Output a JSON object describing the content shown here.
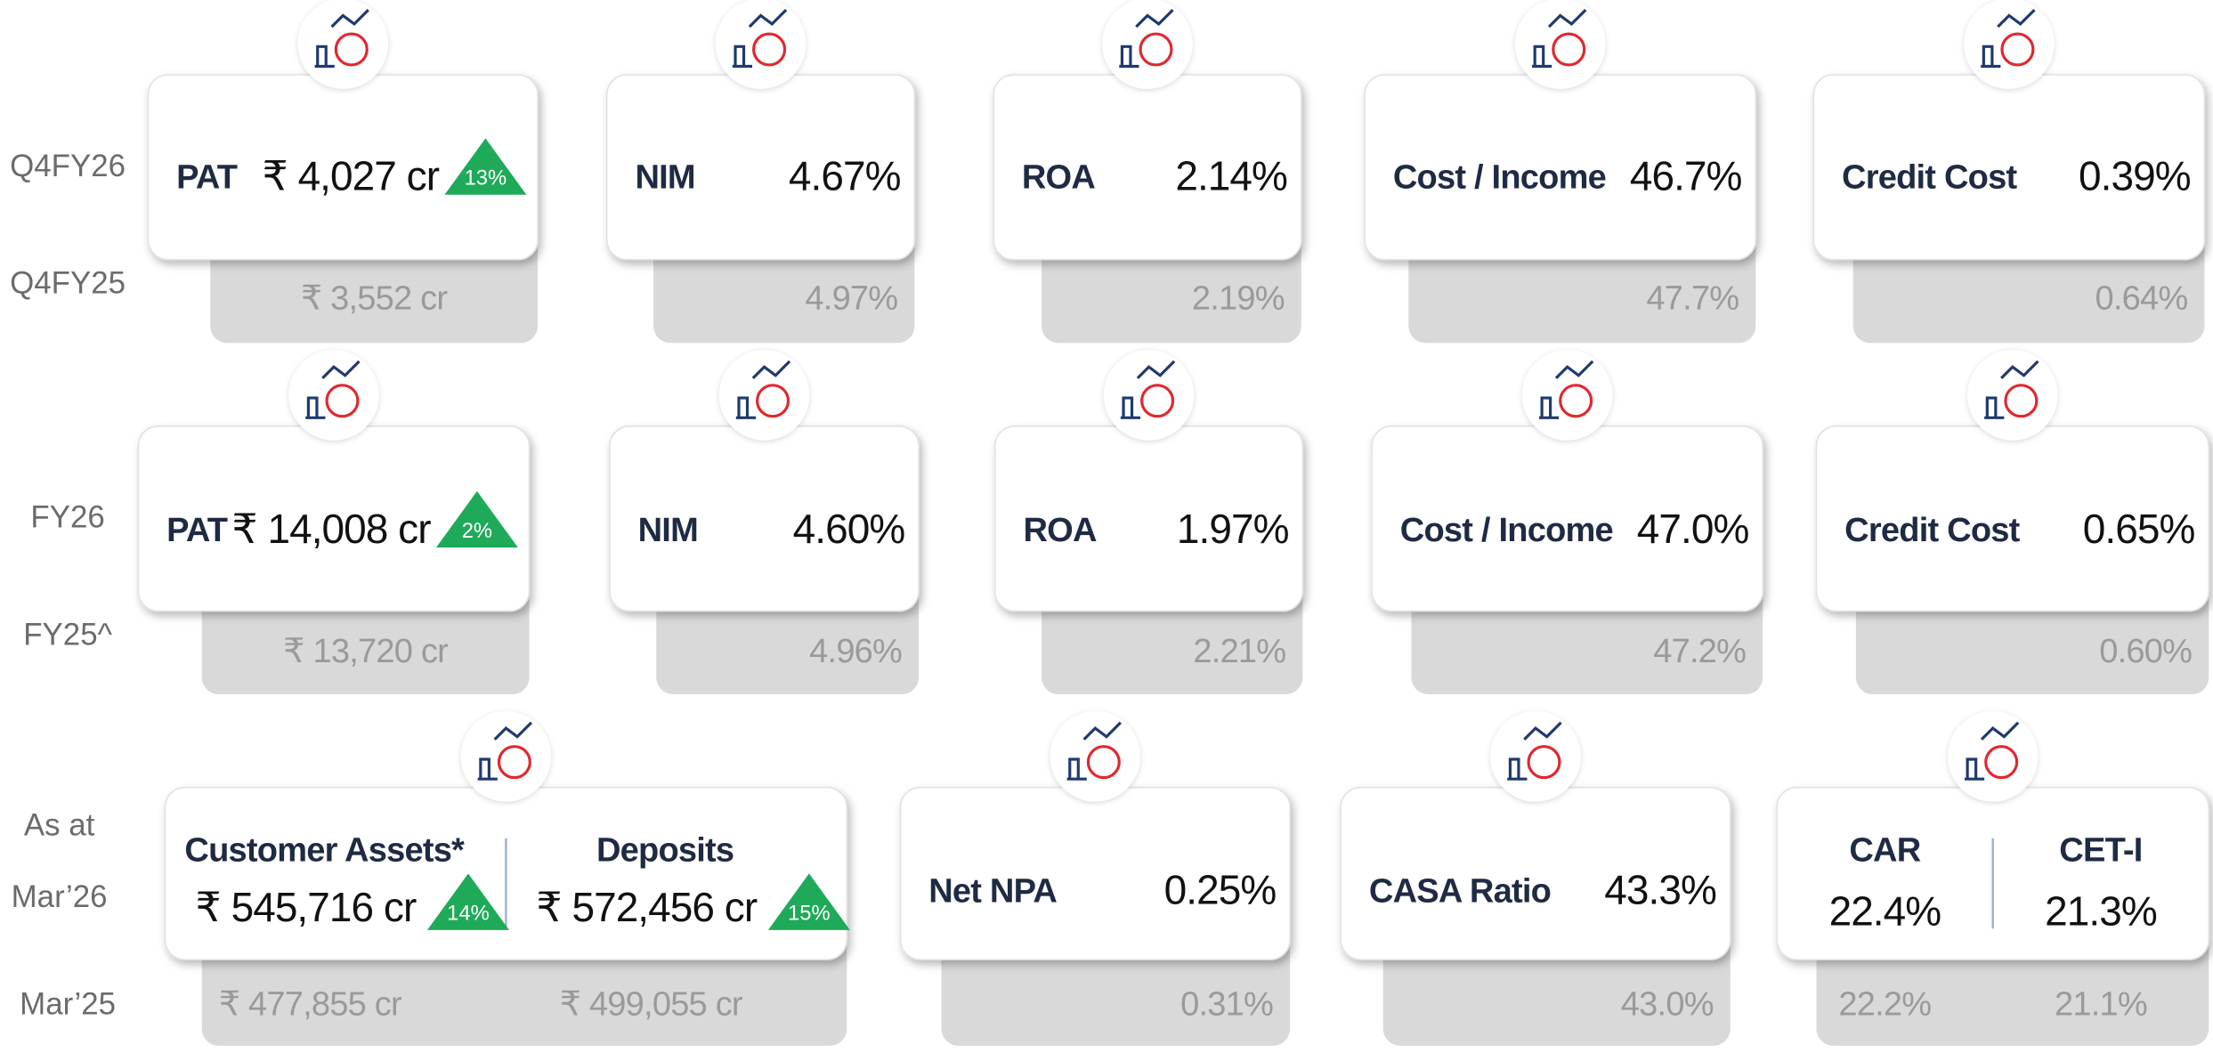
{
  "rows": [
    {
      "current_label": "Q4FY26",
      "previous_label": "Q4FY25",
      "cards": [
        {
          "items": [
            {
              "label": "PAT",
              "value": "₹ 4,027 cr",
              "growth": "13%",
              "previous": "₹ 3,552 cr"
            }
          ]
        },
        {
          "items": [
            {
              "label": "NIM",
              "value": "4.67%",
              "previous": "4.97%"
            }
          ]
        },
        {
          "items": [
            {
              "label": "ROA",
              "value": "2.14%",
              "previous": "2.19%"
            }
          ]
        },
        {
          "items": [
            {
              "label": "Cost / Income",
              "value": "46.7%",
              "previous": "47.7%"
            }
          ]
        },
        {
          "items": [
            {
              "label": "Credit Cost",
              "value": "0.39%",
              "previous": "0.64%"
            }
          ]
        }
      ]
    },
    {
      "current_label": "FY26",
      "previous_label": "FY25^",
      "cards": [
        {
          "items": [
            {
              "label": "PAT",
              "value": "₹ 14,008 cr",
              "growth": "2%",
              "previous": "₹ 13,720 cr"
            }
          ]
        },
        {
          "items": [
            {
              "label": "NIM",
              "value": "4.60%",
              "previous": "4.96%"
            }
          ]
        },
        {
          "items": [
            {
              "label": "ROA",
              "value": "1.97%",
              "previous": "2.21%"
            }
          ]
        },
        {
          "items": [
            {
              "label": "Cost / Income",
              "value": "47.0%",
              "previous": "47.2%"
            }
          ]
        },
        {
          "items": [
            {
              "label": "Credit Cost",
              "value": "0.65%",
              "previous": "0.60%"
            }
          ]
        }
      ]
    },
    {
      "current_label": [
        "As at",
        "Mar’26"
      ],
      "previous_label": "Mar’25",
      "cards": [
        {
          "items": [
            {
              "label": "Customer Assets*",
              "value": "₹ 545,716 cr",
              "growth": "14%",
              "previous": "₹ 477,855 cr"
            },
            {
              "label": "Deposits",
              "value": "₹ 572,456 cr",
              "growth": "15%",
              "previous": "₹ 499,055 cr"
            }
          ]
        },
        {
          "items": [
            {
              "label": "Net NPA",
              "value": "0.25%",
              "previous": "0.31%"
            }
          ]
        },
        {
          "items": [
            {
              "label": "CASA Ratio",
              "value": "43.3%",
              "previous": "43.0%"
            }
          ]
        },
        {
          "items": [
            {
              "label": "CAR",
              "value": "22.4%",
              "previous": "22.2%"
            },
            {
              "label": "CET-I",
              "value": "21.3%",
              "previous": "21.1%"
            }
          ]
        }
      ]
    }
  ]
}
